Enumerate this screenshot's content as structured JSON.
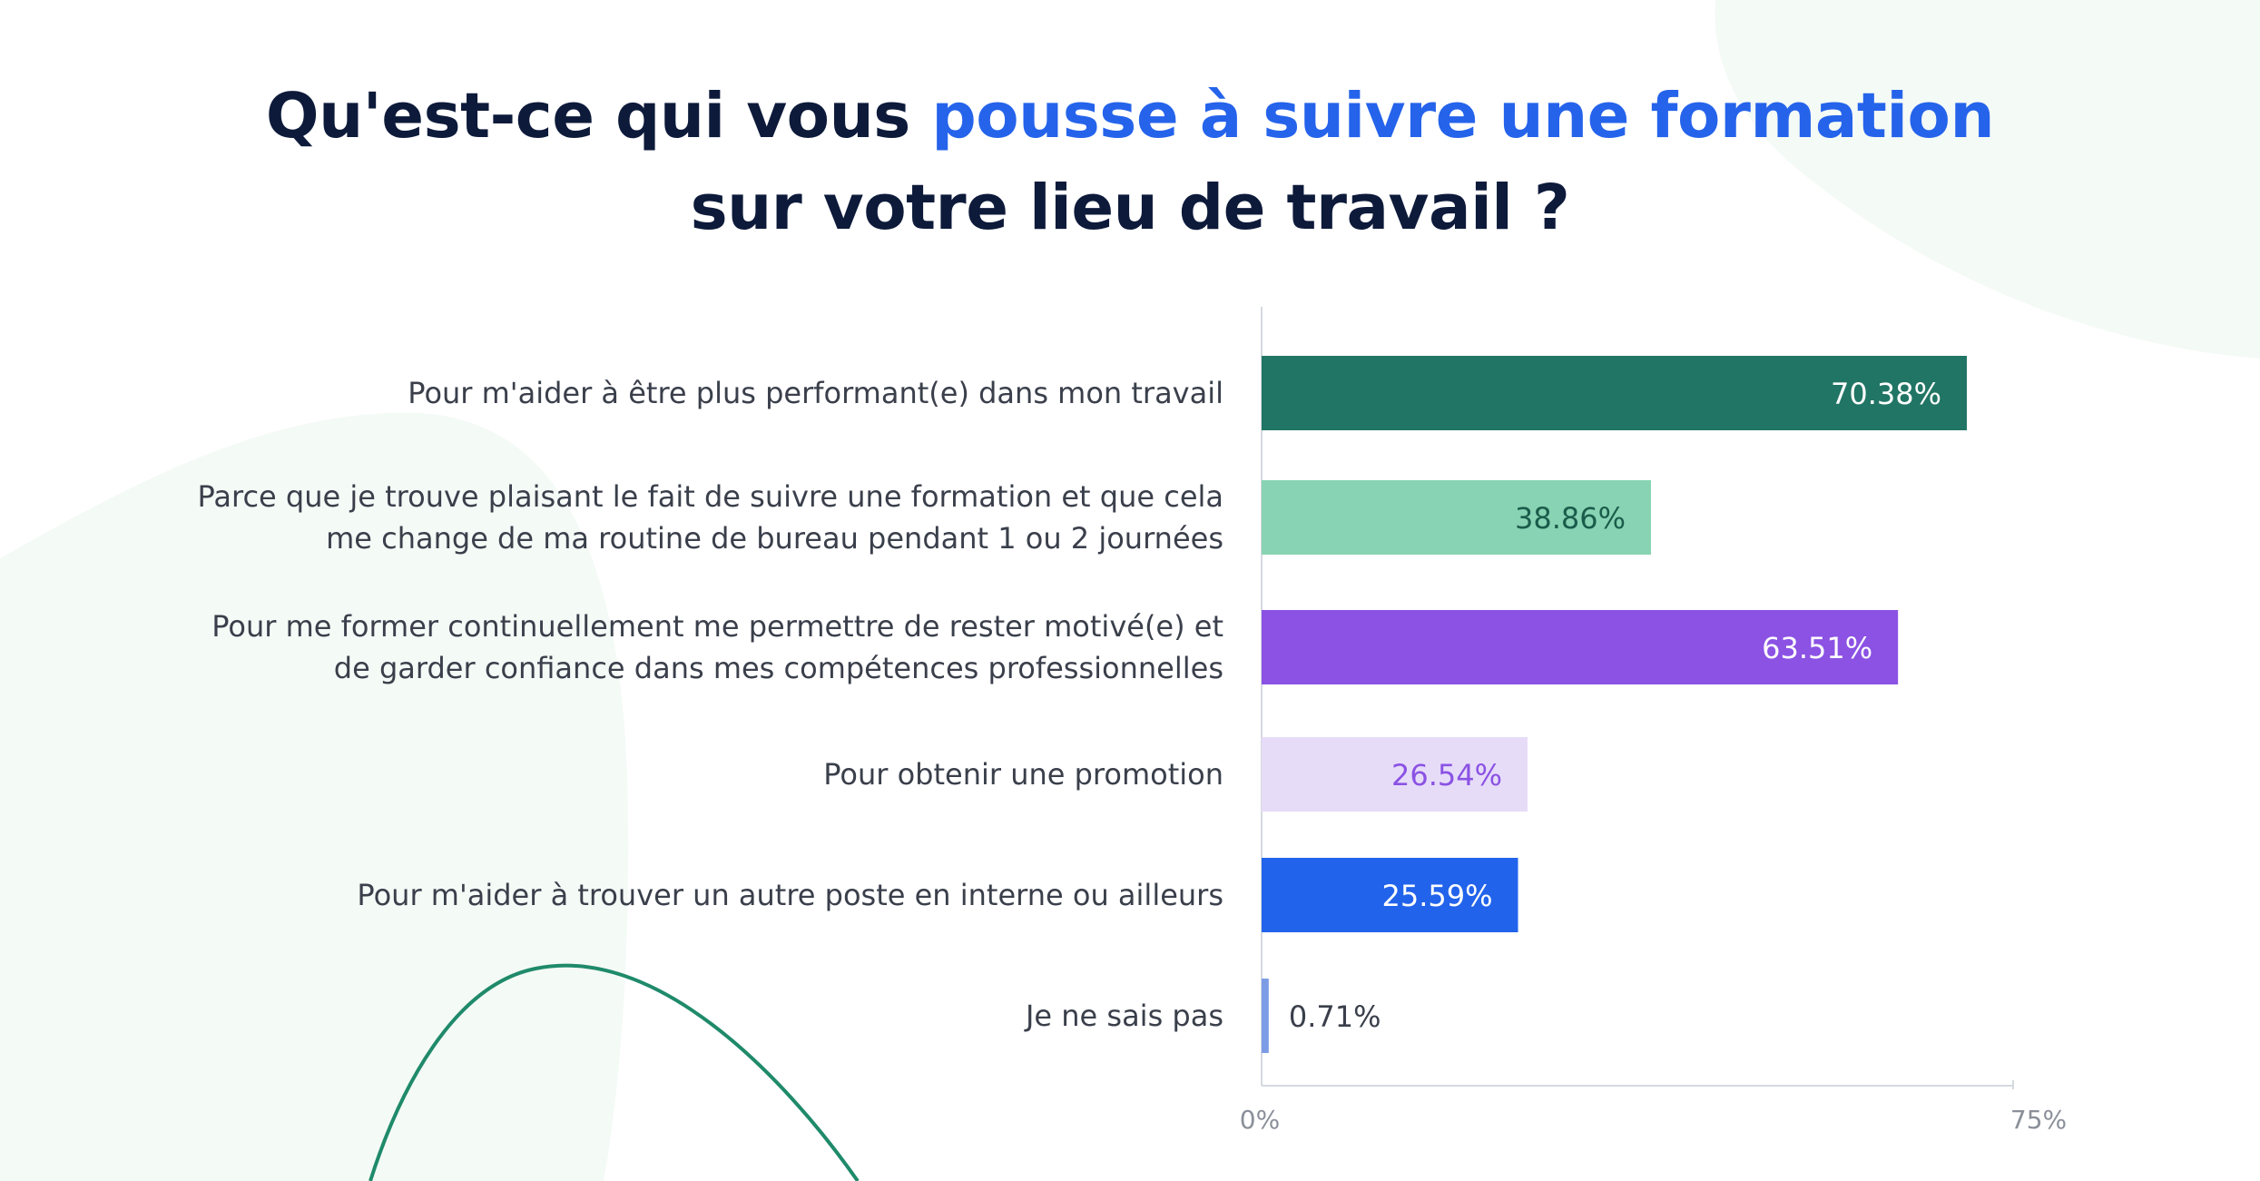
{
  "title": {
    "part1": "Qu'est-ce qui vous ",
    "highlight": "pousse à suivre une formation",
    "line2": "sur votre lieu de travail ?"
  },
  "colors": {
    "title_dark": "#0d1a3a",
    "title_accent": "#2563eb",
    "deco_blob": "#f4faf6",
    "deco_curve": "#1f8a6a"
  },
  "chart_data": {
    "type": "bar",
    "orientation": "horizontal",
    "unit": "%",
    "xlim": [
      0,
      75
    ],
    "ticks": [
      "0%",
      "75%"
    ],
    "categories": [
      [
        "Pour m'aider à être plus performant(e) dans mon travail"
      ],
      [
        "Parce que je trouve plaisant le fait de suivre une formation et que cela",
        "me change de ma routine de bureau pendant 1 ou 2 journées"
      ],
      [
        "Pour me former continuellement me permettre de rester motivé(e) et",
        "de garder confiance dans mes compétences professionnelles"
      ],
      [
        "Pour obtenir une promotion"
      ],
      [
        "Pour m'aider à trouver un autre poste en interne ou ailleurs"
      ],
      [
        "Je ne sais pas"
      ]
    ],
    "values": [
      70.38,
      38.86,
      63.51,
      26.54,
      25.59,
      0.71
    ],
    "value_labels": [
      "70.38%",
      "38.86%",
      "63.51%",
      "26.54%",
      "25.59%",
      "0.71%"
    ],
    "bar_colors": [
      "#217565",
      "#88d3b3",
      "#8b52e4",
      "#e6dcf8",
      "#2263eb",
      "#7c9ce6"
    ],
    "value_label_colors": [
      "#ffffff",
      "#1a5c4b",
      "#ffffff",
      "#8b52e4",
      "#ffffff",
      "#3a3f4b"
    ],
    "value_label_inside": [
      true,
      true,
      true,
      true,
      true,
      false
    ]
  }
}
